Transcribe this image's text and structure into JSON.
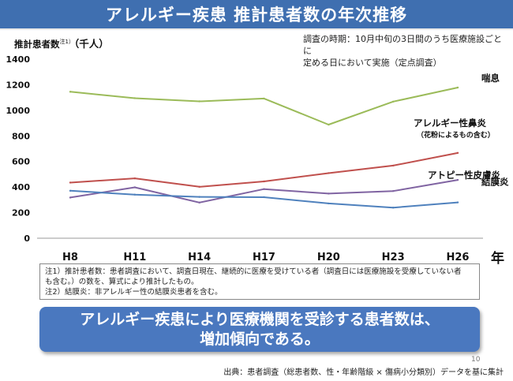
{
  "title": "アレルギー疾患 推計患者数の年次推移",
  "y_axis_label": {
    "main": "推計患者数",
    "note_ref": "注1）",
    "unit": "（千人）"
  },
  "survey_note": {
    "line1": "調査の時期：10月中旬の3日間のうち医療施設ごとに",
    "line2": "定める日において実施（定点調査）"
  },
  "chart_data": {
    "type": "line",
    "title": "",
    "xlabel": "年",
    "ylabel": "推計患者数 注1）（千人）",
    "categories": [
      "H8",
      "H11",
      "H14",
      "H17",
      "H20",
      "H23",
      "H26"
    ],
    "ylim": [
      0,
      1400
    ],
    "yticks": [
      0,
      200,
      400,
      600,
      800,
      1000,
      1200,
      1400
    ],
    "grid": false,
    "legend": "inline-right",
    "series": [
      {
        "name": "喘息",
        "values": [
          1145,
          1095,
          1070,
          1092,
          888,
          1068,
          1178
        ],
        "color": "#9bbb59"
      },
      {
        "name": "アレルギー性鼻炎",
        "sub": "（花粉によるもの含む）",
        "values": [
          435,
          468,
          402,
          444,
          509,
          568,
          667
        ],
        "color": "#c0504d"
      },
      {
        "name": "アトピー性皮膚炎",
        "values": [
          318,
          398,
          279,
          384,
          349,
          369,
          456
        ],
        "color": "#8064a2"
      },
      {
        "name": "結膜炎",
        "note_ref": "注2）",
        "values": [
          371,
          341,
          323,
          321,
          272,
          239,
          280
        ],
        "color": "#4f81bd"
      }
    ]
  },
  "notes": [
    "注1）推計患者数：患者調査において、調査日現在、継続的に医療を受けている者（調査日には医療施設を受療していない者",
    "も含む。）の数を、算式により推計したもの。",
    "注2）結膜炎：非アレルギー性の結膜炎患者を含む。"
  ],
  "conclusion": {
    "line1": "アレルギー疾患により医療機関を受診する患者数は、",
    "line2": "増加傾向である。"
  },
  "page_number": "10",
  "source": "出典：患者調査（総患者数、性・年齢階級 × 傷病小分類別）データを基に集計"
}
